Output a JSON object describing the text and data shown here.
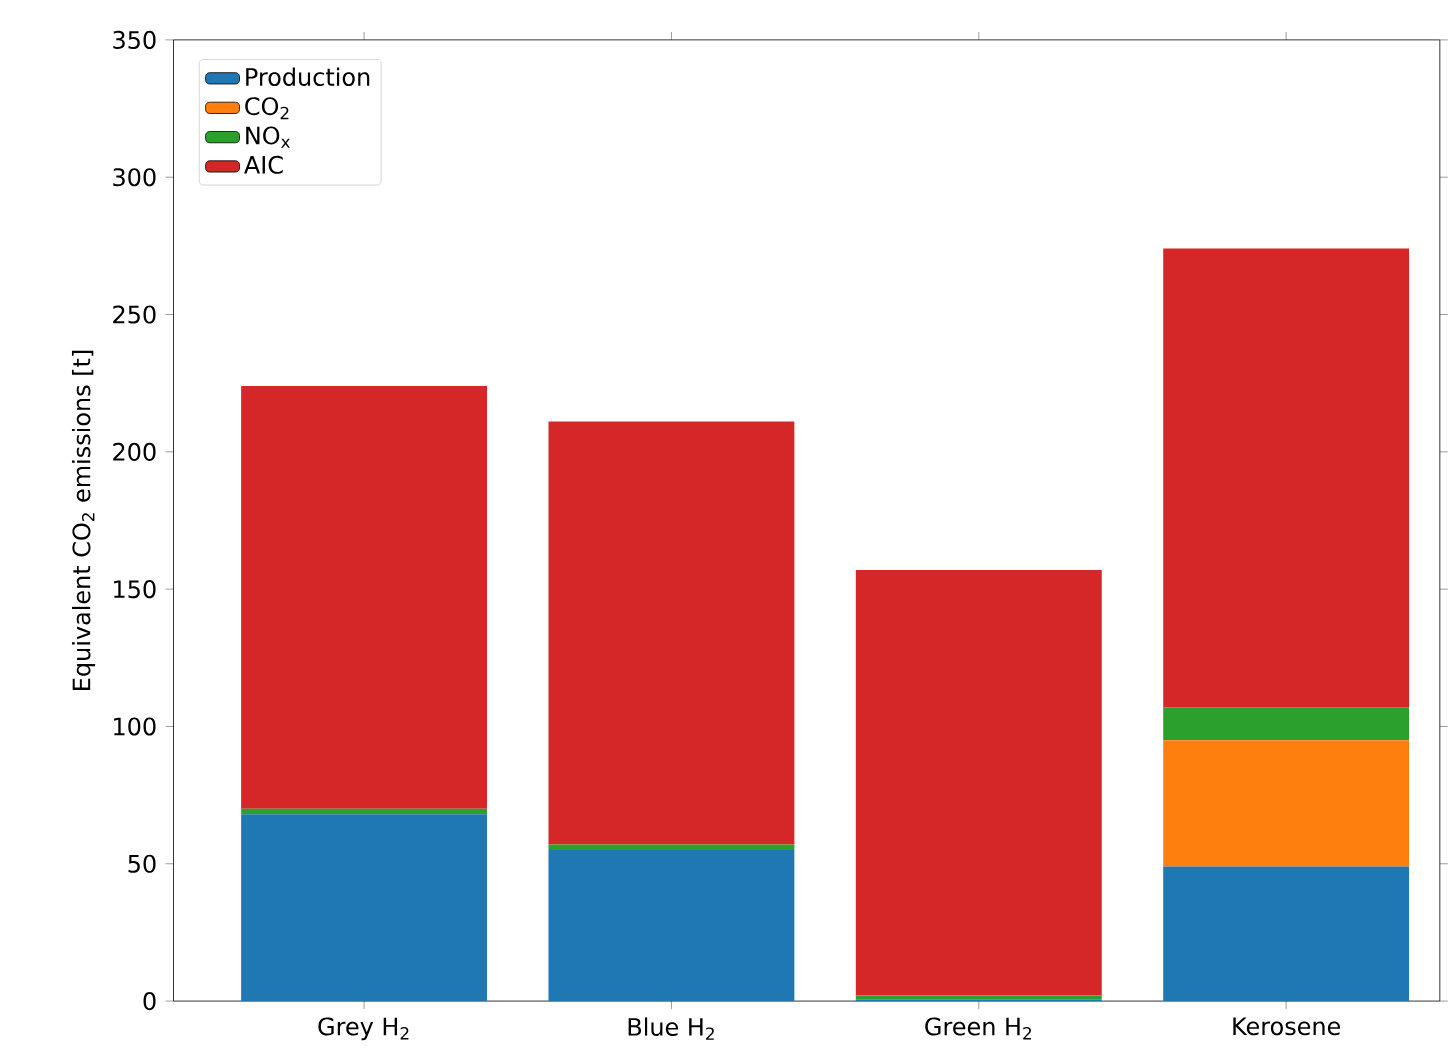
{
  "chart_data": {
    "type": "bar",
    "stacked": true,
    "ylabel": "Equivalent CO$_{2}$ emissions [t]",
    "categories": [
      "Grey H$_{2}$",
      "Blue H$_{2}$",
      "Green H$_{2}$",
      "Kerosene"
    ],
    "series": [
      {
        "name": "Production",
        "color": "#1f77b4",
        "values": [
          68,
          55,
          0.5,
          49
        ]
      },
      {
        "name": "CO$_{2}$",
        "color": "#ff7f0e",
        "values": [
          0,
          0,
          0,
          46
        ]
      },
      {
        "name": "NO$_{x}$",
        "color": "#2ca02c",
        "values": [
          2,
          2,
          1.5,
          12
        ]
      },
      {
        "name": "AIC",
        "color": "#d62728",
        "values": [
          154,
          154,
          155,
          167
        ]
      }
    ],
    "ylim": [
      0,
      350
    ],
    "yticks": [
      0,
      50,
      100,
      150,
      200,
      250,
      300,
      350
    ],
    "legend": "top left"
  }
}
